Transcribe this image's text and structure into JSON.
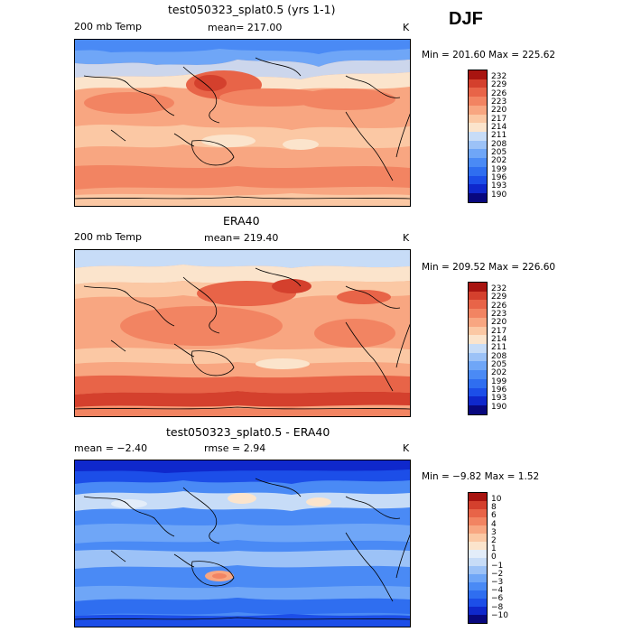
{
  "season": "DJF",
  "panels": [
    {
      "title": "test050323_splat0.5 (yrs 1-1)",
      "left_label": "200 mb Temp",
      "center_label": "mean= 217.00",
      "units": "K",
      "minmax": "Min = 201.60 Max = 225.62",
      "palette": [
        "#08087e",
        "#0f28cc",
        "#1c4ee8",
        "#2f6ef0",
        "#4a8af5",
        "#6fa6f7",
        "#9cc2f7",
        "#c7dcf7",
        "#fbe4cc",
        "#fbc8a4",
        "#f8a681",
        "#f28462",
        "#e86448",
        "#d4402d",
        "#a81410"
      ],
      "colorbar_labels": [
        "232",
        "229",
        "226",
        "223",
        "220",
        "217",
        "214",
        "211",
        "208",
        "205",
        "202",
        "199",
        "196",
        "193",
        "190"
      ]
    },
    {
      "title": "ERA40",
      "left_label": "200 mb Temp",
      "center_label": "mean= 219.40",
      "units": "K",
      "minmax": "Min = 209.52 Max = 226.60",
      "palette": [
        "#08087e",
        "#0f28cc",
        "#1c4ee8",
        "#2f6ef0",
        "#4a8af5",
        "#6fa6f7",
        "#9cc2f7",
        "#c7dcf7",
        "#fbe4cc",
        "#fbc8a4",
        "#f8a681",
        "#f28462",
        "#e86448",
        "#d4402d",
        "#a81410"
      ],
      "colorbar_labels": [
        "232",
        "229",
        "226",
        "223",
        "220",
        "217",
        "214",
        "211",
        "208",
        "205",
        "202",
        "199",
        "196",
        "193",
        "190"
      ]
    },
    {
      "title": "test050323_splat0.5 - ERA40",
      "left_label": "mean =  −2.40",
      "center_label": "rmse =   2.94",
      "units": "K",
      "minmax": "Min =  −9.82 Max =   1.52",
      "palette": [
        "#08087e",
        "#0f28cc",
        "#1c4ee8",
        "#2f6ef0",
        "#4a8af5",
        "#6fa6f7",
        "#9cc2f7",
        "#c7dcf7",
        "#e3edf9",
        "#fbe4cc",
        "#fbc8a4",
        "#f8a681",
        "#f28462",
        "#e86448",
        "#d4402d",
        "#a81410"
      ],
      "colorbar_labels": [
        "10",
        "8",
        "6",
        "4",
        "3",
        "2",
        "1",
        "0",
        "−1",
        "−2",
        "−3",
        "−4",
        "−6",
        "−8",
        "−10"
      ]
    }
  ]
}
